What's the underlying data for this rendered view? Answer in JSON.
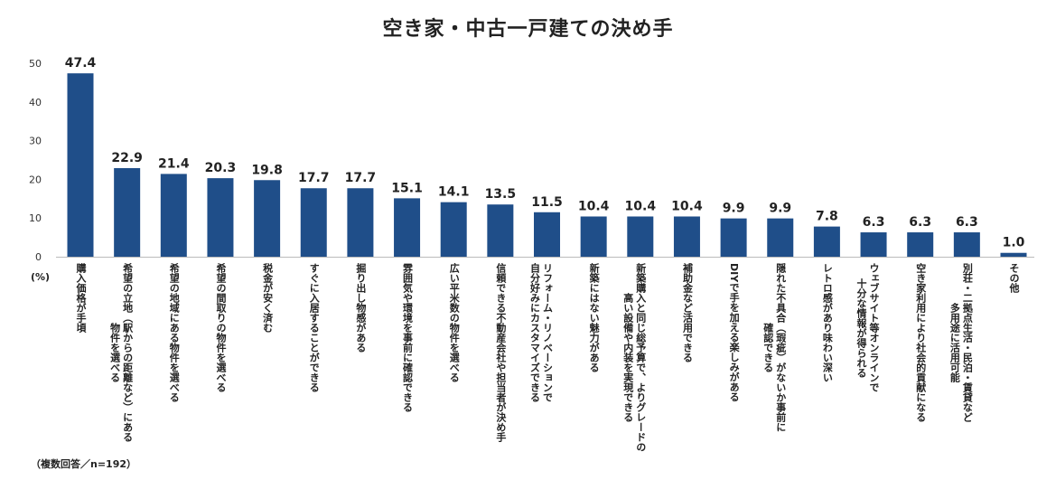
{
  "chart_data": {
    "type": "bar",
    "title": "空き家・中古一戸建ての決め手",
    "ylabel": "(%)",
    "ylim": [
      0,
      50
    ],
    "yticks": [
      0,
      10,
      20,
      30,
      40,
      50
    ],
    "grid": false,
    "bar_color": "#1f4e89",
    "note": "（複数回答／n=192）",
    "categories": [
      "購入価格が手頃",
      "希望の立地（駅からの距離など）にある\n物件を選べる",
      "希望の地域にある物件を選べる",
      "希望の間取りの物件を選べる",
      "税金が安く済む",
      "すぐに入居することができる",
      "掘り出し物感がある",
      "雰囲気や環境を事前に確認できる",
      "広い平米数の物件を選べる",
      "信頼できる不動産会社や担当者が決め手",
      "リフォーム・リノベーションで\n自分好みにカスタマイズできる",
      "新築にはない魅力がある",
      "新築購入と同じ総予算で、よりグレードの\n高い設備や内装を実現できる",
      "補助金など活用できる",
      "DIYで手を加える楽しみがある",
      "隠れた不具合（瑕疵）がないか事前に\n確認できる",
      "レトロ感があり味わい深い",
      "ウェブサイト等オンラインで\n十分な情報が得られる",
      "空き家利用により社会的貢献になる",
      "別荘・二拠点生活・民泊・賃貸など\n多用途に活用可能",
      "その他"
    ],
    "values": [
      47.4,
      22.9,
      21.4,
      20.3,
      19.8,
      17.7,
      17.7,
      15.1,
      14.1,
      13.5,
      11.5,
      10.4,
      10.4,
      10.4,
      9.9,
      9.9,
      7.8,
      6.3,
      6.3,
      6.3,
      1.0
    ]
  }
}
